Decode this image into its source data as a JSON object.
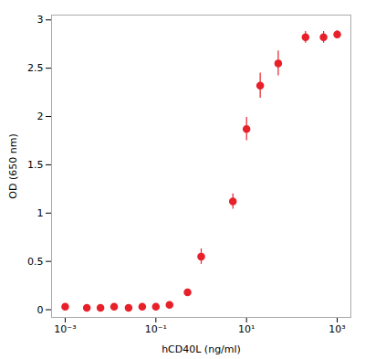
{
  "chart_data": {
    "type": "scatter",
    "x": [
      0.001,
      0.003,
      0.006,
      0.012,
      0.025,
      0.05,
      0.1,
      0.2,
      0.5,
      1.0,
      5.0,
      10.0,
      20.0,
      50.0,
      200.0,
      500.0,
      1000.0
    ],
    "values": [
      0.03,
      0.02,
      0.02,
      0.03,
      0.02,
      0.03,
      0.03,
      0.05,
      0.18,
      0.55,
      1.12,
      1.87,
      2.32,
      2.55,
      2.82,
      2.82,
      2.85
    ],
    "yerr": [
      0.01,
      0.005,
      0.005,
      0.005,
      0.005,
      0.005,
      0.005,
      0.01,
      0.03,
      0.08,
      0.08,
      0.12,
      0.13,
      0.13,
      0.06,
      0.06,
      0.04
    ],
    "color": "#e8202a",
    "marker": "circle",
    "xlabel": "hCD40L (ng/ml)",
    "ylabel": "OD (650 nm)",
    "log": "x",
    "xlim": [
      0.0005,
      2000
    ],
    "ylim": [
      -0.08,
      3.05
    ],
    "xticks": [
      {
        "value": 0.001,
        "label": "10⁻³"
      },
      {
        "value": 0.1,
        "label": "10⁻¹"
      },
      {
        "value": 10.0,
        "label": "10¹"
      },
      {
        "value": 1000.0,
        "label": "10³"
      }
    ],
    "yticks": [
      0.0,
      0.5,
      1.0,
      1.5,
      2.0,
      2.5,
      3.0
    ],
    "grid": false
  }
}
